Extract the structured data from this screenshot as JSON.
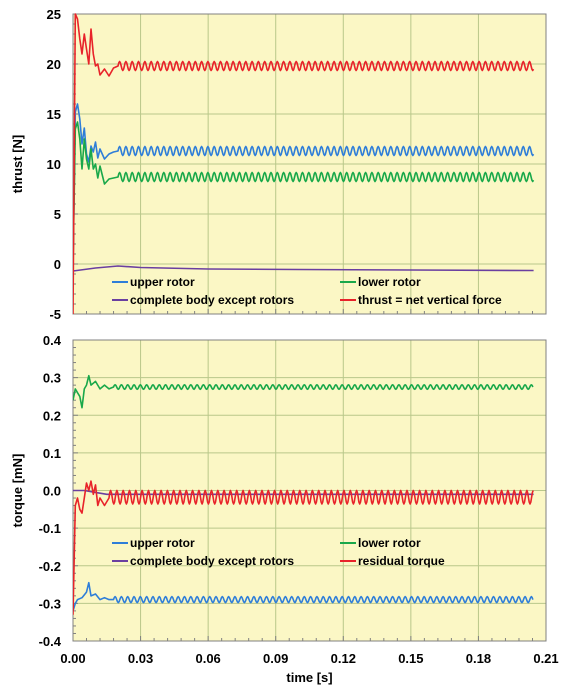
{
  "colors": {
    "plot_bg": "#fbf7c5",
    "grid": "#b9c78a",
    "axis": "#808080",
    "blue": "#2f7ed8",
    "green": "#19a84a",
    "purple": "#6a3fa0",
    "red": "#e8232a"
  },
  "chart_data": [
    {
      "type": "line",
      "title": "",
      "ylabel": "thrust [N]",
      "xlabel": "",
      "xlim": [
        0,
        0.21
      ],
      "ylim": [
        -5,
        25
      ],
      "xticks": [
        "0.00",
        "0.03",
        "0.06",
        "0.09",
        "0.12",
        "0.15",
        "0.18",
        "0.21"
      ],
      "yticks": [
        "-5",
        "0",
        "5",
        "10",
        "15",
        "20",
        "25"
      ],
      "grid": true,
      "legend_position": "bottom",
      "series": [
        {
          "name": "upper rotor",
          "color": "blue",
          "mean": 11.3,
          "amplitude": 0.45,
          "period": 0.0028,
          "x_end": 0.2045,
          "x": [
            0,
            0.001,
            0.002,
            0.003,
            0.004,
            0.005,
            0.006,
            0.007,
            0.008,
            0.009,
            0.01,
            0.011,
            0.012,
            0.014,
            0.016,
            0.018,
            0.02
          ],
          "values": [
            -0.2,
            15.2,
            16.0,
            14.5,
            12.0,
            13.6,
            11.0,
            10.2,
            11.8,
            11.2,
            12.2,
            10.6,
            11.5,
            10.5,
            11.0,
            11.2,
            11.3
          ]
        },
        {
          "name": "lower rotor",
          "color": "green",
          "mean": 8.7,
          "amplitude": 0.45,
          "period": 0.0028,
          "x_end": 0.2045,
          "x": [
            0,
            0.001,
            0.002,
            0.003,
            0.004,
            0.005,
            0.006,
            0.007,
            0.008,
            0.009,
            0.01,
            0.011,
            0.012,
            0.014,
            0.016,
            0.018,
            0.02
          ],
          "values": [
            -0.2,
            13.5,
            14.2,
            12.5,
            9.5,
            12.5,
            10.5,
            9.5,
            11.5,
            9.5,
            10.0,
            8.6,
            9.8,
            8.0,
            8.5,
            8.6,
            8.7
          ]
        },
        {
          "name": "complete body except rotors",
          "color": "purple",
          "mean": -0.6,
          "amplitude": 0,
          "period": 0,
          "x_end": 0.2045,
          "x": [
            0,
            0.01,
            0.02,
            0.03,
            0.06,
            0.1,
            0.15,
            0.2045
          ],
          "values": [
            -0.7,
            -0.4,
            -0.2,
            -0.35,
            -0.5,
            -0.55,
            -0.6,
            -0.65
          ]
        },
        {
          "name": "thrust = net vertical force",
          "color": "red",
          "mean": 19.8,
          "amplitude": 0.45,
          "period": 0.0028,
          "x_end": 0.2045,
          "x": [
            0,
            0.001,
            0.002,
            0.003,
            0.004,
            0.005,
            0.006,
            0.007,
            0.008,
            0.009,
            0.01,
            0.011,
            0.012,
            0.014,
            0.016,
            0.018,
            0.02
          ],
          "values": [
            -5.0,
            25.0,
            24.5,
            22.5,
            21.0,
            23.0,
            21.5,
            20.0,
            23.5,
            21.0,
            19.8,
            20.0,
            18.9,
            19.5,
            18.8,
            19.6,
            19.8
          ]
        }
      ]
    },
    {
      "type": "line",
      "title": "",
      "ylabel": "torque [mN]",
      "xlabel": "time [s]",
      "xlim": [
        0,
        0.21
      ],
      "ylim": [
        -0.4,
        0.4
      ],
      "xticks": [
        "0.00",
        "0.03",
        "0.06",
        "0.09",
        "0.12",
        "0.15",
        "0.18",
        "0.21"
      ],
      "yticks": [
        "-0.4",
        "-0.3",
        "-0.2",
        "-0.1",
        "0.0",
        "0.1",
        "0.2",
        "0.3",
        "0.4"
      ],
      "grid": true,
      "legend_position": "bottom",
      "series": [
        {
          "name": "upper rotor",
          "color": "blue",
          "mean": -0.29,
          "amplitude": 0.008,
          "period": 0.0028,
          "x_end": 0.2045,
          "x": [
            0,
            0.001,
            0.002,
            0.004,
            0.006,
            0.007,
            0.008,
            0.01,
            0.012,
            0.014,
            0.016,
            0.018
          ],
          "values": [
            -0.32,
            -0.3,
            -0.29,
            -0.285,
            -0.27,
            -0.245,
            -0.28,
            -0.275,
            -0.29,
            -0.285,
            -0.29,
            -0.29
          ]
        },
        {
          "name": "lower rotor",
          "color": "green",
          "mean": 0.275,
          "amplitude": 0.006,
          "period": 0.0028,
          "x_end": 0.2045,
          "x": [
            0,
            0.001,
            0.002,
            0.003,
            0.004,
            0.005,
            0.006,
            0.007,
            0.008,
            0.01,
            0.012,
            0.014,
            0.016,
            0.018
          ],
          "values": [
            0.24,
            0.27,
            0.26,
            0.25,
            0.22,
            0.27,
            0.28,
            0.305,
            0.28,
            0.29,
            0.27,
            0.28,
            0.27,
            0.275
          ]
        },
        {
          "name": "complete body except rotors",
          "color": "purple",
          "mean": -0.01,
          "amplitude": 0,
          "period": 0,
          "x_end": 0.2045,
          "x": [
            0,
            0.005,
            0.01,
            0.015,
            0.02,
            0.05,
            0.1,
            0.15,
            0.2045
          ],
          "values": [
            0.0,
            0.0,
            -0.005,
            -0.01,
            -0.01,
            -0.01,
            -0.01,
            -0.01,
            -0.01
          ]
        },
        {
          "name": "residual torque",
          "color": "red",
          "mean": -0.018,
          "amplitude": 0.018,
          "period": 0.0028,
          "x_end": 0.2045,
          "x": [
            0,
            0.001,
            0.002,
            0.003,
            0.004,
            0.005,
            0.006,
            0.007,
            0.008,
            0.009,
            0.01,
            0.011,
            0.012,
            0.014,
            0.016
          ],
          "values": [
            -0.33,
            -0.04,
            -0.02,
            -0.05,
            -0.06,
            -0.02,
            0.02,
            0.0,
            0.025,
            -0.01,
            0.015,
            -0.04,
            -0.02,
            -0.04,
            -0.02
          ]
        }
      ]
    }
  ]
}
